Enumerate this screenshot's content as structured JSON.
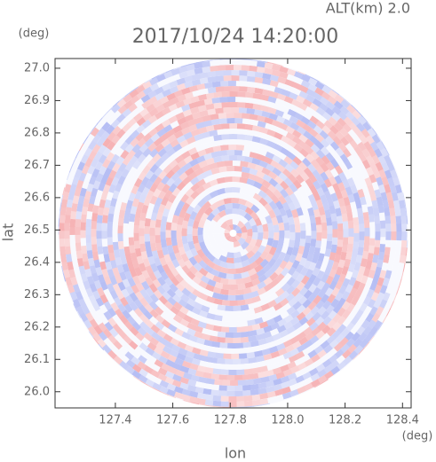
{
  "chart_data": {
    "type": "radar-ppi",
    "title": "2017/10/24 14:20:00",
    "altitude_label": "ALT(km)  2.0",
    "x_label": "lon",
    "y_label": "lat",
    "x_unit": "(deg)",
    "y_unit": "(deg)",
    "xlim": [
      127.19,
      128.43
    ],
    "ylim": [
      25.95,
      27.03
    ],
    "xticks": [
      127.4,
      127.6,
      127.8,
      {
        "value": 128,
        "label": "128.0"
      },
      128.2,
      128.4
    ],
    "yticks": [
      {
        "value": 26,
        "label": "26.0"
      },
      26.1,
      26.2,
      26.3,
      26.4,
      26.5,
      26.6,
      26.7,
      26.8,
      26.9,
      {
        "value": 27,
        "label": "27.0"
      }
    ],
    "positive_color": "#f4a3a6",
    "negative_color": "#a8b2f2"
  }
}
